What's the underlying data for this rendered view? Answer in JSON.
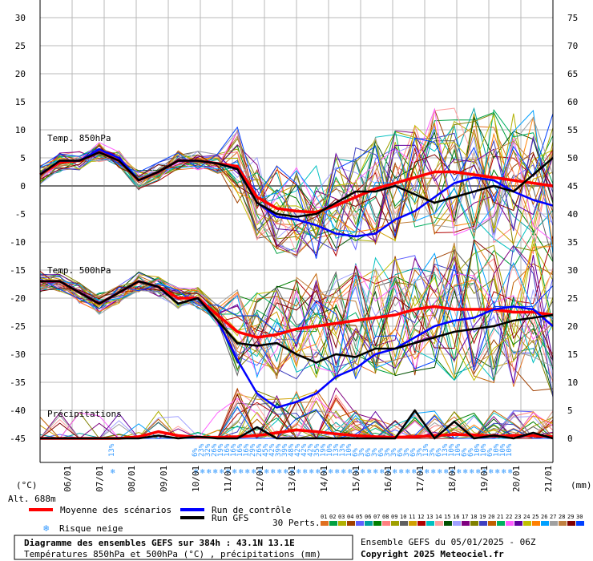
{
  "chart_data": {
    "type": "line",
    "title": "Diagramme des ensembles GEFS sur 384h : 43.1N 13.1E",
    "subtitle": "Températures 850hPa et 500hPa (°C) , précipitations (mm)",
    "left_axis_unit": "(°C)",
    "right_axis_unit": "(mm)",
    "altitude": "Alt. 688m",
    "left_ticks": [
      30,
      25,
      20,
      15,
      10,
      5,
      0,
      -5,
      -10,
      -15,
      -20,
      -25,
      -30,
      -35,
      -40,
      -45
    ],
    "right_ticks": [
      75,
      70,
      65,
      60,
      55,
      50,
      45,
      40,
      35,
      30,
      25,
      20,
      15,
      10,
      5,
      0
    ],
    "ylim_celsius": [
      -45,
      30
    ],
    "ylim_mm": [
      0,
      75
    ],
    "x_tick_labels": [
      "06/01",
      "07/01",
      "08/01",
      "09/01",
      "10/01",
      "11/01",
      "12/01",
      "13/01",
      "14/01",
      "15/01",
      "16/01",
      "17/01",
      "18/01",
      "19/01",
      "20/01",
      "21/01"
    ],
    "panel_labels": {
      "t850": "Temp. 850hPa",
      "t500": "Temp. 500hPa",
      "precip": "Précipitations"
    },
    "series": [
      {
        "name": "Moyenne des scénarios",
        "color": "#ff0000",
        "group": "t850",
        "values": [
          2,
          4.2,
          4.5,
          6,
          4.5,
          1,
          2.5,
          4.5,
          4.5,
          4,
          3.5,
          -2,
          -4,
          -4.5,
          -4.7,
          -3.5,
          -2,
          -0.5,
          0.5,
          1.5,
          2.5,
          2.5,
          2,
          1.5,
          1,
          0.5,
          0
        ]
      },
      {
        "name": "Run de contrôle",
        "color": "#0000ff",
        "group": "t850",
        "values": [
          2,
          4.5,
          4.5,
          6.5,
          5,
          1,
          2.5,
          4.5,
          4.5,
          4,
          3,
          -3,
          -5.5,
          -6,
          -7,
          -8.5,
          -9,
          -8.5,
          -6,
          -4.5,
          -2,
          0.5,
          1.5,
          1,
          -1,
          -2.5,
          -3.5
        ]
      },
      {
        "name": "Run GFS",
        "color": "#000000",
        "group": "t850",
        "values": [
          2,
          4.5,
          4.5,
          6,
          4.5,
          1,
          2.5,
          4.5,
          4.5,
          4,
          3,
          -3,
          -5,
          -5.5,
          -5,
          -3,
          -1,
          -1,
          0,
          -1.5,
          -3,
          -2,
          -1,
          0,
          -1,
          2,
          5
        ]
      },
      {
        "name": "Moyenne des scénarios",
        "color": "#ff0000",
        "group": "t500",
        "values": [
          -17,
          -17,
          -19,
          -21,
          -19,
          -17,
          -18,
          -20,
          -20,
          -23,
          -26,
          -27,
          -26.5,
          -25.5,
          -25,
          -24.5,
          -24,
          -23.5,
          -23,
          -22,
          -21.5,
          -22,
          -22,
          -22,
          -22.5,
          -22.5,
          -23
        ]
      },
      {
        "name": "Run de contrôle",
        "color": "#0000ff",
        "group": "t500",
        "values": [
          -17,
          -17,
          -19,
          -21,
          -19,
          -17,
          -18,
          -21,
          -20,
          -24,
          -31,
          -37,
          -39.5,
          -38.5,
          -37,
          -34,
          -32.5,
          -30,
          -29,
          -27,
          -25,
          -24,
          -23.5,
          -22,
          -21.5,
          -22,
          -25
        ]
      },
      {
        "name": "Run GFS",
        "color": "#000000",
        "group": "t500",
        "values": [
          -17,
          -17,
          -19,
          -21,
          -19,
          -17,
          -18,
          -21,
          -20,
          -24,
          -28,
          -28.5,
          -28,
          -30,
          -31.5,
          -30,
          -30.5,
          -29,
          -29,
          -28,
          -27,
          -26,
          -25.5,
          -25,
          -24,
          -23.5,
          -23
        ]
      },
      {
        "name": "Moyenne des scénarios",
        "color": "#ff0000",
        "group": "precip",
        "values": [
          0,
          0,
          0,
          0,
          0,
          0.3,
          1.2,
          0.5,
          0.2,
          0.2,
          0.3,
          0.5,
          1,
          1.5,
          1.2,
          0.8,
          0.5,
          0.3,
          0.2,
          0.3,
          0.5,
          0.7,
          0.6,
          0.4,
          0.5,
          0.5,
          0.3
        ]
      },
      {
        "name": "Run GFS",
        "color": "#000000",
        "group": "precip",
        "values": [
          0,
          0,
          0,
          0,
          0,
          0,
          0.5,
          0,
          0.3,
          0,
          0,
          2,
          0,
          0,
          0,
          0,
          0,
          0,
          0,
          5,
          0,
          3,
          0,
          0.5,
          0,
          1,
          0
        ]
      }
    ],
    "snow_risk_label": "Risque neige",
    "snow_risk": [
      {
        "x": 11.5,
        "pct": "13%"
      },
      {
        "x": 24.5,
        "pct": "6%"
      },
      {
        "x": 25.5,
        "pct": "23%"
      },
      {
        "x": 26.5,
        "pct": "32%"
      },
      {
        "x": 27.5,
        "pct": "26%"
      },
      {
        "x": 28.5,
        "pct": "19%"
      },
      {
        "x": 29.5,
        "pct": "16%"
      },
      {
        "x": 30.5,
        "pct": "16%"
      },
      {
        "x": 31.5,
        "pct": "16%"
      },
      {
        "x": 32.5,
        "pct": "16%"
      },
      {
        "x": 33.5,
        "pct": "29%"
      },
      {
        "x": 34.5,
        "pct": "26%"
      },
      {
        "x": 35.5,
        "pct": "45%"
      },
      {
        "x": 36.5,
        "pct": "42%"
      },
      {
        "x": 37.5,
        "pct": "39%"
      },
      {
        "x": 38.5,
        "pct": "39%"
      },
      {
        "x": 39.5,
        "pct": "48%"
      },
      {
        "x": 40.5,
        "pct": "42%"
      },
      {
        "x": 41.5,
        "pct": "42%"
      },
      {
        "x": 42.5,
        "pct": "42%"
      },
      {
        "x": 43.5,
        "pct": "35%"
      },
      {
        "x": 44.5,
        "pct": "19%"
      },
      {
        "x": 45.5,
        "pct": "10%"
      },
      {
        "x": 46.5,
        "pct": "13%"
      },
      {
        "x": 47.5,
        "pct": "13%"
      },
      {
        "x": 48.5,
        "pct": "10%"
      },
      {
        "x": 49.5,
        "pct": "6%"
      },
      {
        "x": 50.5,
        "pct": "3%"
      },
      {
        "x": 51.5,
        "pct": "6%"
      },
      {
        "x": 52.5,
        "pct": "3%"
      },
      {
        "x": 53.5,
        "pct": "6%"
      },
      {
        "x": 54.5,
        "pct": "3%"
      },
      {
        "x": 55.5,
        "pct": "3%"
      },
      {
        "x": 56.5,
        "pct": "6%"
      },
      {
        "x": 57.5,
        "pct": "3%"
      },
      {
        "x": 58.5,
        "pct": "6%"
      },
      {
        "x": 59.5,
        "pct": "3%"
      },
      {
        "x": 60.5,
        "pct": "13%"
      },
      {
        "x": 61.5,
        "pct": "3%"
      },
      {
        "x": 62.5,
        "pct": "6%"
      },
      {
        "x": 63.5,
        "pct": "13%"
      },
      {
        "x": 64.5,
        "pct": "10%"
      },
      {
        "x": 65.5,
        "pct": "10%"
      },
      {
        "x": 66.5,
        "pct": "6%"
      },
      {
        "x": 67.5,
        "pct": "6%"
      },
      {
        "x": 68.5,
        "pct": "10%"
      },
      {
        "x": 69.5,
        "pct": "10%"
      },
      {
        "x": 70.5,
        "pct": "6%"
      },
      {
        "x": 71.5,
        "pct": "10%"
      },
      {
        "x": 72.5,
        "pct": "10%"
      },
      {
        "x": 73.5,
        "pct": "10%"
      }
    ],
    "members_label": "30 Perts.",
    "member_numbers": [
      "01",
      "02",
      "03",
      "04",
      "05",
      "06",
      "07",
      "08",
      "09",
      "10",
      "11",
      "12",
      "13",
      "14",
      "15",
      "16",
      "17",
      "18",
      "19",
      "20",
      "21",
      "22",
      "23",
      "24",
      "25",
      "26",
      "27",
      "28",
      "29",
      "30"
    ],
    "member_colors": [
      "#e07020",
      "#00a040",
      "#b0b000",
      "#a04000",
      "#6060ff",
      "#00a0a0",
      "#008000",
      "#ff8080",
      "#a0a000",
      "#606060",
      "#d0a000",
      "#b00000",
      "#00c0c0",
      "#ffa0a0",
      "#005000",
      "#a0a0ff",
      "#800080",
      "#808000",
      "#4040c0",
      "#c06000",
      "#00b060",
      "#ff60ff",
      "#6000a0",
      "#c0c000",
      "#ff8000",
      "#00a0ff",
      "#a0a0a0",
      "#c08040",
      "#800000",
      "#0040ff"
    ],
    "run_info": "Ensemble GEFS du 05/01/2025 - 06Z",
    "copyright": "Copyright 2025 Meteociel.fr",
    "grid": true
  }
}
